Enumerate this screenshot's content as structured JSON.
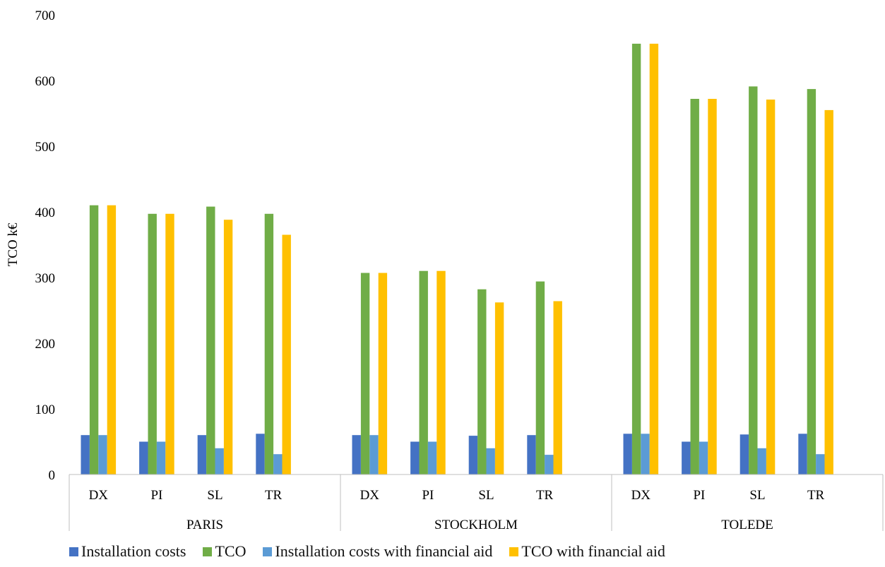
{
  "chart_data": {
    "type": "bar",
    "ylabel": "TCO k€",
    "ylim": [
      0,
      700
    ],
    "yticks": [
      0,
      100,
      200,
      300,
      400,
      500,
      600,
      700
    ],
    "grid": false,
    "legend_position": "bottom",
    "groups": [
      {
        "label": "PARIS",
        "categories": [
          "DX",
          "PI",
          "SL",
          "TR"
        ]
      },
      {
        "label": "STOCKHOLM",
        "categories": [
          "DX",
          "PI",
          "SL",
          "TR"
        ]
      },
      {
        "label": "TOLEDE",
        "categories": [
          "DX",
          "PI",
          "SL",
          "TR"
        ]
      }
    ],
    "series": [
      {
        "name": "Installation costs",
        "color": "#4472C4",
        "values": [
          60,
          50,
          60,
          62,
          60,
          50,
          59,
          60,
          62,
          50,
          61,
          62
        ]
      },
      {
        "name": "TCO",
        "color": "#70AD47",
        "values": [
          410,
          397,
          408,
          397,
          307,
          310,
          282,
          294,
          656,
          572,
          591,
          587
        ]
      },
      {
        "name": "Installation costs with financial aid",
        "color": "#5B9BD5",
        "values": [
          60,
          50,
          40,
          31,
          60,
          50,
          40,
          30,
          62,
          50,
          40,
          31
        ]
      },
      {
        "name": "TCO with financial aid",
        "color": "#FFC000",
        "values": [
          410,
          397,
          388,
          365,
          307,
          310,
          262,
          264,
          656,
          572,
          571,
          555
        ]
      }
    ]
  }
}
